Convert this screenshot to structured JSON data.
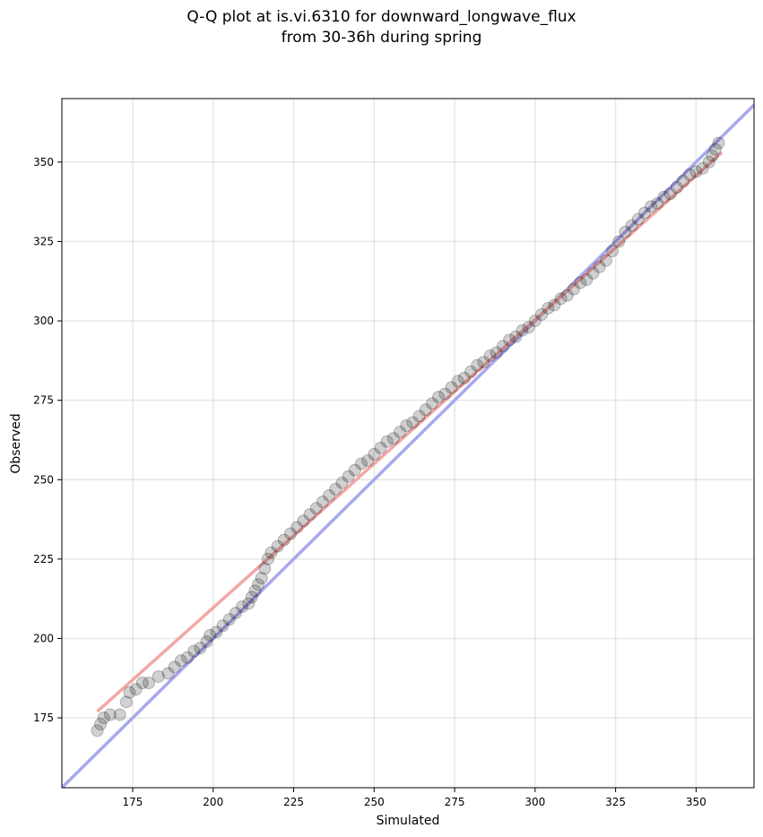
{
  "title_line1": "Q-Q plot at is.vi.6310 for downward_longwave_flux",
  "title_line2": "from 30-36h during spring",
  "chart_data": {
    "type": "scatter",
    "xlabel": "Simulated",
    "ylabel": "Observed",
    "xlim": [
      153,
      368
    ],
    "ylim": [
      153,
      370
    ],
    "xticks": [
      175,
      200,
      225,
      250,
      275,
      300,
      325,
      350
    ],
    "yticks": [
      175,
      200,
      225,
      250,
      275,
      300,
      325,
      350
    ],
    "grid": true,
    "reference_line": {
      "name": "1:1 line",
      "color": "#a8a8f0",
      "from": [
        153,
        153
      ],
      "to": [
        368,
        368
      ]
    },
    "fit_line": {
      "color": "#f2a7a7",
      "from": [
        164,
        177
      ],
      "to": [
        358,
        353
      ]
    },
    "points_color": "#000000",
    "quantiles": [
      [
        164,
        171
      ],
      [
        165,
        173
      ],
      [
        166,
        175
      ],
      [
        168,
        176
      ],
      [
        171,
        176
      ],
      [
        173,
        180
      ],
      [
        174,
        183
      ],
      [
        176,
        184
      ],
      [
        178,
        186
      ],
      [
        180,
        186
      ],
      [
        183,
        188
      ],
      [
        186,
        189
      ],
      [
        188,
        191
      ],
      [
        190,
        193
      ],
      [
        192,
        194
      ],
      [
        194,
        196
      ],
      [
        196,
        197
      ],
      [
        198,
        199
      ],
      [
        199,
        201
      ],
      [
        201,
        202
      ],
      [
        203,
        204
      ],
      [
        205,
        206
      ],
      [
        207,
        208
      ],
      [
        209,
        210
      ],
      [
        211,
        211
      ],
      [
        212,
        213
      ],
      [
        213,
        215
      ],
      [
        214,
        217
      ],
      [
        215,
        219
      ],
      [
        216,
        222
      ],
      [
        217,
        225
      ],
      [
        218,
        227
      ],
      [
        220,
        229
      ],
      [
        222,
        231
      ],
      [
        224,
        233
      ],
      [
        226,
        235
      ],
      [
        228,
        237
      ],
      [
        230,
        239
      ],
      [
        232,
        241
      ],
      [
        234,
        243
      ],
      [
        236,
        245
      ],
      [
        238,
        247
      ],
      [
        240,
        249
      ],
      [
        242,
        251
      ],
      [
        244,
        253
      ],
      [
        246,
        255
      ],
      [
        248,
        256
      ],
      [
        250,
        258
      ],
      [
        252,
        260
      ],
      [
        254,
        262
      ],
      [
        256,
        263
      ],
      [
        258,
        265
      ],
      [
        260,
        267
      ],
      [
        262,
        268
      ],
      [
        264,
        270
      ],
      [
        266,
        272
      ],
      [
        268,
        274
      ],
      [
        270,
        276
      ],
      [
        272,
        277
      ],
      [
        274,
        279
      ],
      [
        276,
        281
      ],
      [
        278,
        282
      ],
      [
        280,
        284
      ],
      [
        282,
        286
      ],
      [
        284,
        287
      ],
      [
        286,
        289
      ],
      [
        288,
        290
      ],
      [
        290,
        292
      ],
      [
        292,
        294
      ],
      [
        294,
        295
      ],
      [
        296,
        297
      ],
      [
        298,
        298
      ],
      [
        300,
        300
      ],
      [
        302,
        302
      ],
      [
        304,
        304
      ],
      [
        306,
        305
      ],
      [
        308,
        307
      ],
      [
        310,
        308
      ],
      [
        312,
        310
      ],
      [
        314,
        312
      ],
      [
        316,
        313
      ],
      [
        318,
        315
      ],
      [
        320,
        317
      ],
      [
        322,
        319
      ],
      [
        324,
        322
      ],
      [
        326,
        325
      ],
      [
        328,
        328
      ],
      [
        330,
        330
      ],
      [
        332,
        332
      ],
      [
        334,
        334
      ],
      [
        336,
        336
      ],
      [
        338,
        337
      ],
      [
        340,
        339
      ],
      [
        342,
        340
      ],
      [
        344,
        342
      ],
      [
        346,
        344
      ],
      [
        348,
        346
      ],
      [
        350,
        347
      ],
      [
        352,
        348
      ],
      [
        354,
        350
      ],
      [
        355,
        352
      ],
      [
        356,
        354
      ],
      [
        357,
        356
      ]
    ]
  }
}
